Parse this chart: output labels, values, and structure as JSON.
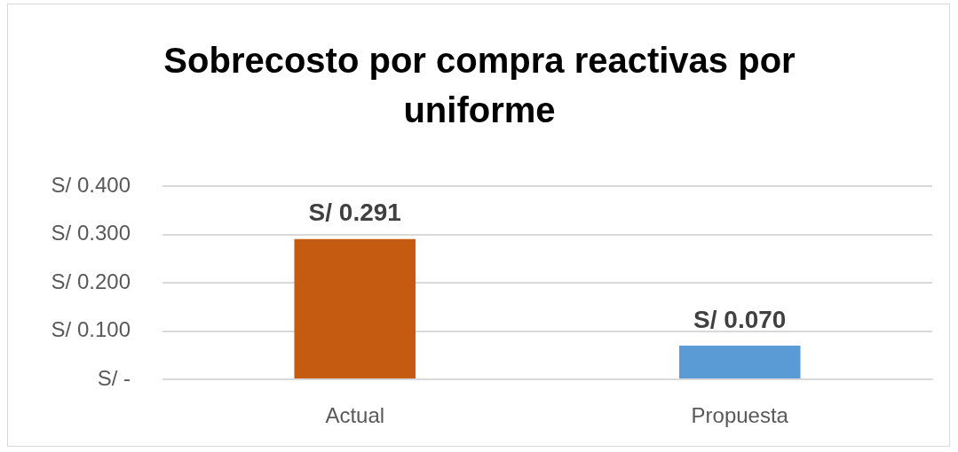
{
  "chart_data": {
    "type": "bar",
    "title": "Sobrecosto por compra reactivas por uniforme",
    "categories": [
      "Actual",
      "Propuesta"
    ],
    "values": [
      0.291,
      0.07
    ],
    "colors": [
      "#c55a11",
      "#5b9bd5"
    ],
    "value_labels": [
      "S/ 0.291",
      "S/ 0.070"
    ],
    "ylim": [
      0,
      0.4
    ],
    "yticks": [
      {
        "value": 0,
        "label": "S/ -"
      },
      {
        "value": 0.1,
        "label": "S/ 0.100"
      },
      {
        "value": 0.2,
        "label": "S/ 0.200"
      },
      {
        "value": 0.3,
        "label": "S/ 0.300"
      },
      {
        "value": 0.4,
        "label": "S/ 0.400"
      }
    ],
    "grid": "y",
    "legend": false
  }
}
